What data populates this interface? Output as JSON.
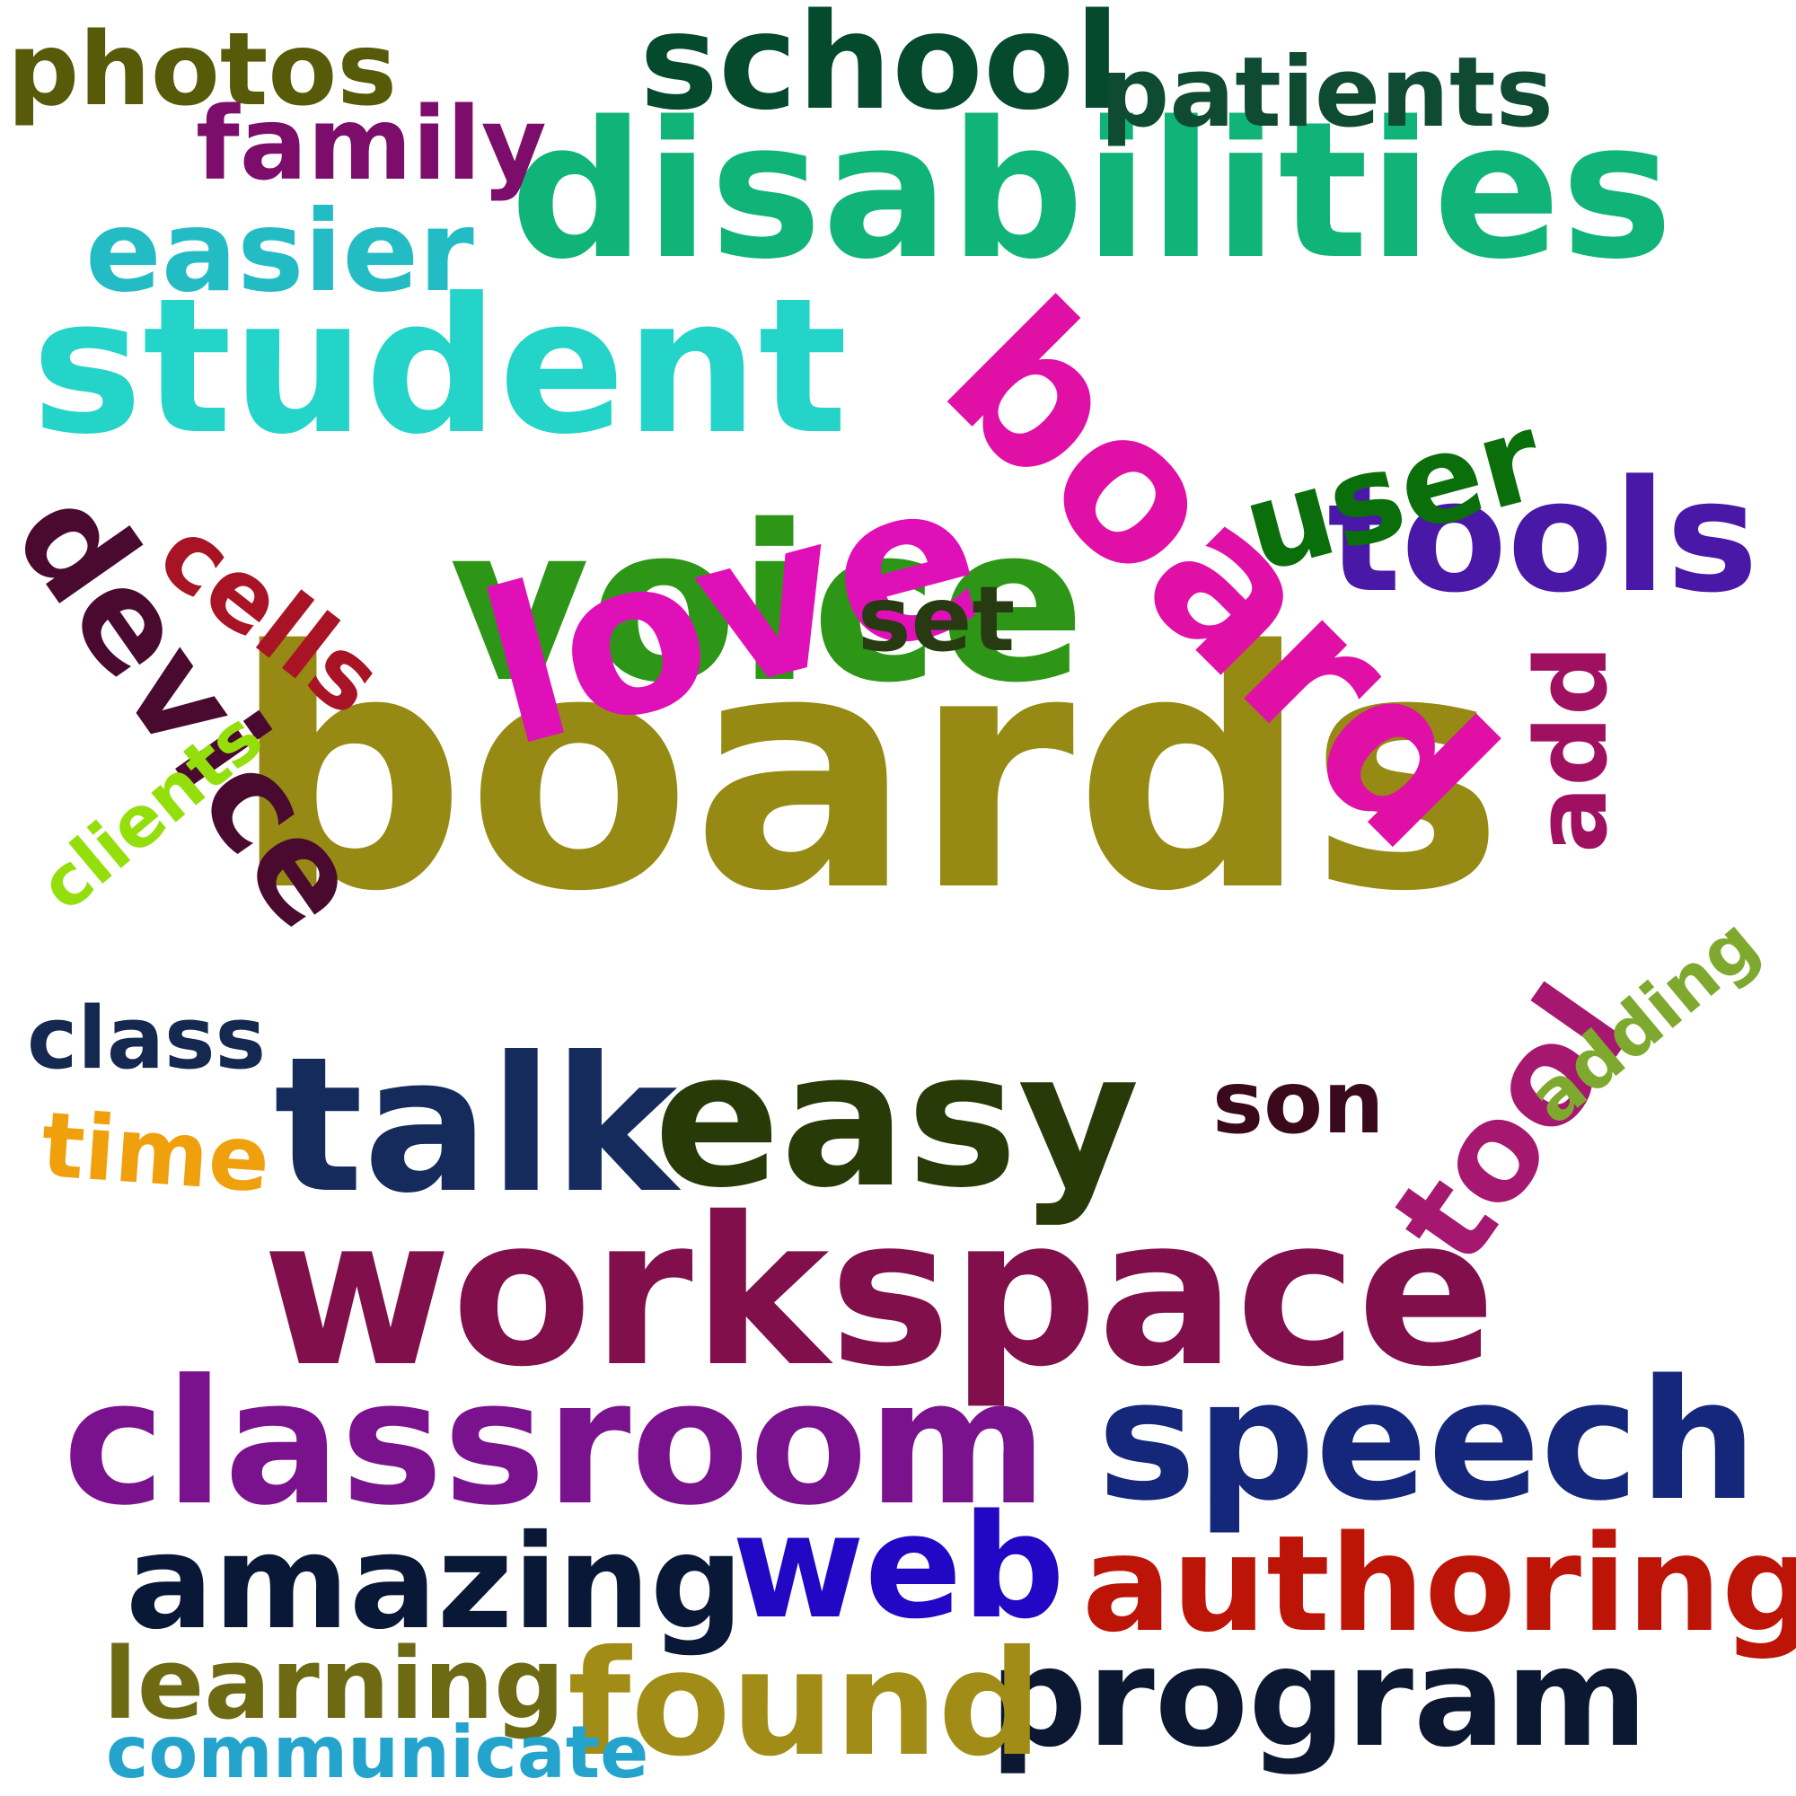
{
  "words": [
    {
      "id": "boards",
      "text": "boards",
      "color": "#968a14"
    },
    {
      "id": "voice",
      "text": "voice",
      "color": "#2e9616"
    },
    {
      "id": "love",
      "text": "love",
      "color": "#e010b8"
    },
    {
      "id": "board",
      "text": "board",
      "color": "#e010a6"
    },
    {
      "id": "disabilities",
      "text": "disabilities",
      "color": "#10b478"
    },
    {
      "id": "student",
      "text": "student",
      "color": "#24d4c8"
    },
    {
      "id": "workspace",
      "text": "workspace",
      "color": "#800f4b"
    },
    {
      "id": "easy",
      "text": "easy",
      "color": "#293a09"
    },
    {
      "id": "classroom",
      "text": "classroom",
      "color": "#7a128e"
    },
    {
      "id": "speech",
      "text": "speech",
      "color": "#14277a"
    },
    {
      "id": "talk",
      "text": "talk",
      "color": "#142b5c"
    },
    {
      "id": "school",
      "text": "school",
      "color": "#064a2e"
    },
    {
      "id": "web",
      "text": "web",
      "color": "#2208c4"
    },
    {
      "id": "authoring",
      "text": "authoring",
      "color": "#bd1408"
    },
    {
      "id": "amazing",
      "text": "amazing",
      "color": "#0a1838"
    },
    {
      "id": "program",
      "text": "program",
      "color": "#0c1732"
    },
    {
      "id": "found",
      "text": "found",
      "color": "#a08c16"
    },
    {
      "id": "tools",
      "text": "tools",
      "color": "#4a18a6"
    },
    {
      "id": "device",
      "text": "device",
      "color": "#4a0a30"
    },
    {
      "id": "tool",
      "text": "tool",
      "color": "#a61870"
    },
    {
      "id": "user",
      "text": "user",
      "color": "#0a6e0a"
    },
    {
      "id": "easier",
      "text": "easier",
      "color": "#24bcc4"
    },
    {
      "id": "patients",
      "text": "patients",
      "color": "#0f4a32"
    },
    {
      "id": "photos",
      "text": "photos",
      "color": "#575a09"
    },
    {
      "id": "family",
      "text": "family",
      "color": "#7c0d6a"
    },
    {
      "id": "learning",
      "text": "learning",
      "color": "#6e6a14"
    },
    {
      "id": "cells",
      "text": "cells",
      "color": "#a81426"
    },
    {
      "id": "add",
      "text": "add",
      "color": "#a01060"
    },
    {
      "id": "set",
      "text": "set",
      "color": "#283a12"
    },
    {
      "id": "son",
      "text": "son",
      "color": "#3a0a1c"
    },
    {
      "id": "class",
      "text": "class",
      "color": "#142850"
    },
    {
      "id": "time",
      "text": "time",
      "color": "#f0a00c"
    },
    {
      "id": "clients",
      "text": "clients",
      "color": "#94de0c"
    },
    {
      "id": "adding",
      "text": "adding",
      "color": "#7ea82e"
    },
    {
      "id": "communicate",
      "text": "communicate",
      "color": "#24a4cc"
    }
  ]
}
